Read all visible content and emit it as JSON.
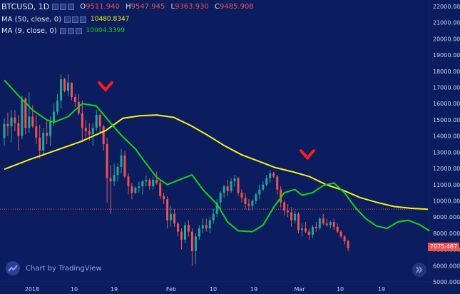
{
  "legend": {
    "symbol": "BTCUSD, 1D",
    "ohlc": [
      {
        "label": "O",
        "value": "9511.940"
      },
      {
        "label": "H",
        "value": "9547.945"
      },
      {
        "label": "L",
        "value": "9363.930"
      },
      {
        "label": "C",
        "value": "9485.908"
      }
    ],
    "ma50": {
      "label": "MA (50, close, 0)",
      "value": "10480.8347",
      "color": "#f7f01a"
    },
    "ma9": {
      "label": "MA (9, close, 0)",
      "value": "10004.3399",
      "color": "#16d416"
    }
  },
  "watermark": {
    "text": "Chart by TradingView",
    "icon": "tradingview-cloud-icon"
  },
  "scroll_button_icon": "double-chevron-right-icon",
  "last_price_label": "7075.487",
  "colors": {
    "background": "#0b1d5e",
    "up": "#26a69a",
    "down": "#ef5350",
    "ma50": "#f7f01a",
    "ma9": "#16d416",
    "arrow": "#ff1a1a"
  },
  "chart_data": {
    "type": "candlestick",
    "y_axis": {
      "ticks": [
        "22000.000",
        "21000.000",
        "20000.000",
        "19000.000",
        "18000.000",
        "17000.000",
        "16000.000",
        "15000.000",
        "14000.000",
        "13000.000",
        "12000.000",
        "11000.000",
        "10000.000",
        "9000.000",
        "8000.000",
        "7000.000",
        "6000.000",
        "5000.000"
      ],
      "range": [
        5000,
        22300
      ],
      "grid": false
    },
    "x_axis": {
      "ticks": [
        "2018",
        "10",
        "19",
        "Feb",
        "10",
        "19",
        "Mar",
        "10",
        "19"
      ]
    },
    "horizontal_line": 9486,
    "annotations": [
      {
        "type": "down-arrow",
        "at_price": 16500,
        "note": "arrow above candles near mid-January"
      },
      {
        "type": "down-arrow",
        "at_price": 12300,
        "note": "arrow above candles near early March"
      }
    ],
    "candles": [
      [
        13880,
        15100,
        13400,
        14750
      ],
      [
        14750,
        15450,
        14000,
        14600
      ],
      [
        14600,
        15600,
        13600,
        15150
      ],
      [
        15150,
        15600,
        14300,
        14800
      ],
      [
        14800,
        15300,
        13100,
        14000
      ],
      [
        14000,
        16500,
        13800,
        16300
      ],
      [
        16300,
        16400,
        14100,
        14500
      ],
      [
        14500,
        16700,
        14200,
        15200
      ],
      [
        15200,
        15900,
        14500,
        14600
      ],
      [
        14600,
        15300,
        13500,
        13900
      ],
      [
        13900,
        14700,
        12600,
        13100
      ],
      [
        13100,
        14500,
        12800,
        14200
      ],
      [
        14200,
        15000,
        13500,
        14000
      ],
      [
        14000,
        15200,
        13400,
        14900
      ],
      [
        14900,
        16000,
        14600,
        15500
      ],
      [
        15500,
        16600,
        15300,
        16200
      ],
      [
        16200,
        17800,
        15700,
        17500
      ],
      [
        17500,
        17600,
        16700,
        16800
      ],
      [
        16800,
        17800,
        16500,
        17300
      ],
      [
        17300,
        17300,
        16200,
        16400
      ],
      [
        16400,
        16600,
        15800,
        16100
      ],
      [
        16100,
        16600,
        15300,
        15400
      ],
      [
        15400,
        16200,
        13600,
        14500
      ],
      [
        14500,
        15000,
        13900,
        14300
      ],
      [
        14300,
        14800,
        13700,
        14100
      ],
      [
        14100,
        14800,
        13400,
        14500
      ],
      [
        14500,
        15600,
        14300,
        15300
      ],
      [
        15300,
        15400,
        14200,
        14600
      ],
      [
        14600,
        14700,
        13100,
        13500
      ],
      [
        13500,
        13900,
        9900,
        11400
      ],
      [
        11400,
        12200,
        9200,
        11200
      ],
      [
        11200,
        12300,
        10900,
        11600
      ],
      [
        11600,
        12300,
        11200,
        12100
      ],
      [
        12100,
        13200,
        11700,
        12800
      ],
      [
        12800,
        13100,
        11400,
        11500
      ],
      [
        11500,
        11700,
        10400,
        10900
      ],
      [
        10900,
        11100,
        10100,
        10500
      ],
      [
        10500,
        10900,
        10400,
        10800
      ],
      [
        10800,
        11200,
        10500,
        10900
      ],
      [
        10900,
        11300,
        10400,
        11200
      ],
      [
        11200,
        11600,
        10900,
        11300
      ],
      [
        11300,
        11400,
        10700,
        10900
      ],
      [
        10900,
        11500,
        10700,
        11300
      ],
      [
        11300,
        11800,
        11000,
        11100
      ],
      [
        11100,
        11300,
        10100,
        10300
      ],
      [
        10300,
        10500,
        9800,
        10100
      ],
      [
        10100,
        10300,
        8300,
        8800
      ],
      [
        8800,
        9700,
        8400,
        9200
      ],
      [
        9200,
        9500,
        8400,
        8600
      ],
      [
        8600,
        8700,
        7800,
        8100
      ],
      [
        8100,
        8300,
        7000,
        7600
      ],
      [
        7600,
        8700,
        7400,
        8500
      ],
      [
        8500,
        8800,
        7800,
        8100
      ],
      [
        8100,
        8300,
        6000,
        6900
      ],
      [
        6900,
        8000,
        6100,
        7800
      ],
      [
        7800,
        8500,
        7600,
        8300
      ],
      [
        8300,
        8900,
        8000,
        8500
      ],
      [
        8500,
        8900,
        8100,
        8300
      ],
      [
        8300,
        9000,
        8000,
        8800
      ],
      [
        8800,
        9500,
        8600,
        9200
      ],
      [
        9200,
        10100,
        9000,
        9900
      ],
      [
        9900,
        10600,
        9500,
        10500
      ],
      [
        10500,
        11000,
        10200,
        10900
      ],
      [
        10900,
        11300,
        10300,
        10600
      ],
      [
        10600,
        11400,
        10500,
        11200
      ],
      [
        11200,
        11600,
        10900,
        11400
      ],
      [
        11400,
        11500,
        10300,
        10500
      ],
      [
        10500,
        10700,
        9900,
        10200
      ],
      [
        10200,
        10500,
        9500,
        9800
      ],
      [
        9800,
        10100,
        9400,
        9700
      ],
      [
        9700,
        10100,
        9400,
        10000
      ],
      [
        10000,
        10500,
        9800,
        10400
      ],
      [
        10400,
        11000,
        10100,
        10700
      ],
      [
        10700,
        11200,
        10600,
        11000
      ],
      [
        11000,
        11600,
        10900,
        11400
      ],
      [
        11400,
        11900,
        11100,
        11700
      ],
      [
        11700,
        11800,
        11400,
        11500
      ],
      [
        11500,
        11600,
        10400,
        10700
      ],
      [
        10700,
        10900,
        9600,
        9900
      ],
      [
        9900,
        10000,
        9100,
        9400
      ],
      [
        9400,
        9800,
        9000,
        9300
      ],
      [
        9300,
        9600,
        8400,
        8800
      ],
      [
        8800,
        9400,
        8600,
        9200
      ],
      [
        9200,
        9300,
        8000,
        8200
      ],
      [
        8200,
        8600,
        7800,
        8300
      ],
      [
        8300,
        8700,
        8000,
        8100
      ],
      [
        8100,
        8300,
        7600,
        7900
      ],
      [
        7900,
        8500,
        7700,
        8400
      ],
      [
        8400,
        8700,
        8100,
        8300
      ],
      [
        8300,
        9000,
        8200,
        8900
      ],
      [
        8900,
        9200,
        8500,
        8600
      ],
      [
        8600,
        8900,
        8400,
        8500
      ],
      [
        8500,
        8800,
        8300,
        8700
      ],
      [
        8700,
        8900,
        8200,
        8400
      ],
      [
        8400,
        8600,
        8000,
        8100
      ],
      [
        8100,
        8200,
        7700,
        7800
      ],
      [
        7800,
        7900,
        7300,
        7500
      ],
      [
        7500,
        7600,
        6900,
        7075
      ]
    ],
    "ma50": [
      [
        0,
        11950
      ],
      [
        6,
        12550
      ],
      [
        12,
        13100
      ],
      [
        18,
        13650
      ],
      [
        24,
        14350
      ],
      [
        28,
        15100
      ],
      [
        32,
        15250
      ],
      [
        36,
        15300
      ],
      [
        40,
        15150
      ],
      [
        44,
        14650
      ],
      [
        48,
        14050
      ],
      [
        52,
        13400
      ],
      [
        56,
        12850
      ],
      [
        60,
        12450
      ],
      [
        64,
        12050
      ],
      [
        68,
        11800
      ],
      [
        72,
        11500
      ],
      [
        76,
        11000
      ],
      [
        80,
        10650
      ],
      [
        84,
        10200
      ],
      [
        88,
        9900
      ],
      [
        92,
        9650
      ],
      [
        96,
        9540
      ],
      [
        100,
        9485
      ]
    ],
    "ma9": [
      [
        0,
        17450
      ],
      [
        4,
        16500
      ],
      [
        8,
        15600
      ],
      [
        12,
        15000
      ],
      [
        14,
        14850
      ],
      [
        18,
        15200
      ],
      [
        22,
        16000
      ],
      [
        26,
        15850
      ],
      [
        30,
        14800
      ],
      [
        33,
        14050
      ],
      [
        37,
        13200
      ],
      [
        40,
        12300
      ],
      [
        43,
        11450
      ],
      [
        46,
        11000
      ],
      [
        50,
        11350
      ],
      [
        53,
        11600
      ],
      [
        56,
        10700
      ],
      [
        60,
        9800
      ],
      [
        63,
        8700
      ],
      [
        66,
        8150
      ],
      [
        70,
        8100
      ],
      [
        73,
        8500
      ],
      [
        76,
        9600
      ],
      [
        79,
        10500
      ],
      [
        82,
        10700
      ],
      [
        84,
        10350
      ],
      [
        87,
        10500
      ],
      [
        90,
        10950
      ],
      [
        93,
        11100
      ],
      [
        96,
        10500
      ],
      [
        99,
        9600
      ],
      [
        102,
        8900
      ],
      [
        105,
        8450
      ],
      [
        108,
        8300
      ],
      [
        111,
        8700
      ],
      [
        114,
        8800
      ],
      [
        117,
        8550
      ],
      [
        120,
        8150
      ]
    ]
  }
}
